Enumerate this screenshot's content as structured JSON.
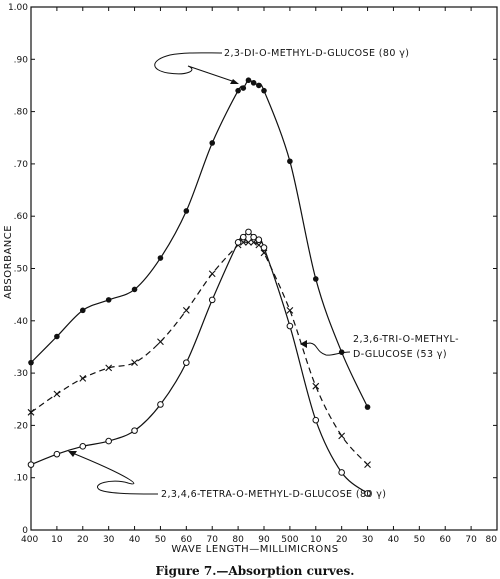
{
  "chart_data": {
    "type": "line",
    "caption": "Figure 7.—Absorption curves.",
    "ylabel": "ABSORBANCE",
    "xlabel": "WAVE LENGTH—MILLIMICRONS",
    "ylim": [
      0,
      1.0
    ],
    "xlim": [
      400,
      580
    ],
    "y_ticks": [
      "0",
      ".10",
      ".20",
      ".30",
      ".40",
      ".50",
      ".60",
      ".70",
      ".80",
      ".90",
      "1.00"
    ],
    "x_ticks": [
      "400",
      "10",
      "20",
      "30",
      "40",
      "50",
      "60",
      "70",
      "80",
      "90",
      "500",
      "10",
      "20",
      "30",
      "40",
      "50",
      "60",
      "70",
      "80"
    ],
    "series": [
      {
        "name": "2,3-DI-O-METHYL-D-GLUCOSE (80 γ)",
        "marker": "filled-circle",
        "line": "solid",
        "points": [
          [
            400,
            0.32
          ],
          [
            410,
            0.37
          ],
          [
            420,
            0.42
          ],
          [
            430,
            0.44
          ],
          [
            440,
            0.46
          ],
          [
            450,
            0.52
          ],
          [
            460,
            0.61
          ],
          [
            470,
            0.74
          ],
          [
            480,
            0.84
          ],
          [
            482,
            0.845
          ],
          [
            484,
            0.86
          ],
          [
            486,
            0.855
          ],
          [
            488,
            0.85
          ],
          [
            490,
            0.84
          ],
          [
            500,
            0.705
          ],
          [
            510,
            0.48
          ],
          [
            520,
            0.34
          ],
          [
            530,
            0.235
          ]
        ]
      },
      {
        "name": "2,3,6-TRI-O-METHYL-D-GLUCOSE (53 γ)",
        "marker": "cross",
        "line": "dashed",
        "points": [
          [
            400,
            0.225
          ],
          [
            410,
            0.26
          ],
          [
            420,
            0.29
          ],
          [
            430,
            0.31
          ],
          [
            440,
            0.32
          ],
          [
            450,
            0.36
          ],
          [
            460,
            0.42
          ],
          [
            470,
            0.49
          ],
          [
            480,
            0.545
          ],
          [
            482,
            0.55
          ],
          [
            484,
            0.55
          ],
          [
            486,
            0.55
          ],
          [
            488,
            0.545
          ],
          [
            490,
            0.53
          ],
          [
            500,
            0.42
          ],
          [
            510,
            0.275
          ],
          [
            520,
            0.18
          ],
          [
            530,
            0.125
          ]
        ]
      },
      {
        "name": "2,3,4,6-TETRA-O-METHYL-D-GLUCOSE (80 γ)",
        "marker": "open-circle",
        "line": "solid",
        "points": [
          [
            400,
            0.125
          ],
          [
            410,
            0.145
          ],
          [
            420,
            0.16
          ],
          [
            430,
            0.17
          ],
          [
            440,
            0.19
          ],
          [
            450,
            0.24
          ],
          [
            460,
            0.32
          ],
          [
            470,
            0.44
          ],
          [
            480,
            0.55
          ],
          [
            482,
            0.56
          ],
          [
            484,
            0.57
          ],
          [
            486,
            0.56
          ],
          [
            488,
            0.555
          ],
          [
            490,
            0.54
          ],
          [
            500,
            0.39
          ],
          [
            510,
            0.21
          ],
          [
            520,
            0.11
          ],
          [
            530,
            0.07
          ]
        ]
      }
    ],
    "annotations": [
      "2,3-DI-O-METHYL-D-GLUCOSE (80 γ)",
      "2,3,6-TRI-O-METHYL-",
      "D-GLUCOSE (53 γ)",
      "2,3,4,6-TETRA-O-METHYL-D-GLUCOSE (80 γ)"
    ],
    "grid": false,
    "legend": "none"
  }
}
